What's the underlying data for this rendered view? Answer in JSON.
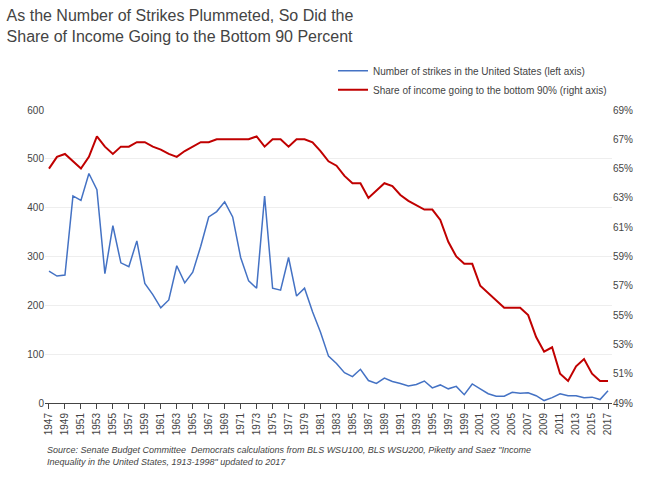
{
  "chart_data": {
    "type": "line",
    "title": "As the Number of Strikes Plummeted, So Did the\nShare of Income Going to the Bottom 90 Percent",
    "annotations": [
      "Source: Senate Budget Committee  Democrats calculations from BLS WSU100, BLS WSU200, Piketty and Saez \"Income\nInequality in the United States, 1913-1998\" updated to 2017"
    ],
    "x": [
      1947,
      1948,
      1949,
      1950,
      1951,
      1952,
      1953,
      1954,
      1955,
      1956,
      1957,
      1958,
      1959,
      1960,
      1961,
      1962,
      1963,
      1964,
      1965,
      1966,
      1967,
      1968,
      1969,
      1970,
      1971,
      1972,
      1973,
      1974,
      1975,
      1976,
      1977,
      1978,
      1979,
      1980,
      1981,
      1982,
      1983,
      1984,
      1985,
      1986,
      1987,
      1988,
      1989,
      1990,
      1991,
      1992,
      1993,
      1994,
      1995,
      1996,
      1997,
      1998,
      1999,
      2000,
      2001,
      2002,
      2003,
      2004,
      2005,
      2006,
      2007,
      2008,
      2009,
      2010,
      2011,
      2012,
      2013,
      2014,
      2015,
      2016,
      2017
    ],
    "series": [
      {
        "name": "Number of strikes in the United States (left axis)",
        "color": "#4472C4",
        "values": [
          270,
          260,
          262,
          424,
          415,
          470,
          437,
          265,
          363,
          287,
          279,
          332,
          245,
          222,
          195,
          211,
          281,
          246,
          268,
          321,
          381,
          392,
          412,
          381,
          298,
          250,
          235,
          424,
          235,
          231,
          298,
          219,
          235,
          187,
          145,
          96,
          81,
          62,
          54,
          69,
          46,
          40,
          51,
          44,
          40,
          35,
          38,
          45,
          31,
          37,
          29,
          34,
          17,
          39,
          29,
          19,
          14,
          14,
          22,
          20,
          21,
          15,
          5,
          11,
          19,
          15,
          15,
          11,
          12,
          7,
          25
        ]
      },
      {
        "name": "Share of income going to the bottom 90% (right axis)",
        "color": "#C00000",
        "axis": "y2",
        "values": [
          65.0,
          65.8,
          66.0,
          65.5,
          65.0,
          65.8,
          67.2,
          66.5,
          66.0,
          66.5,
          66.5,
          66.8,
          66.8,
          66.5,
          66.3,
          66.0,
          65.8,
          66.2,
          66.5,
          66.8,
          66.8,
          67.0,
          67.0,
          67.0,
          67.0,
          67.0,
          67.2,
          66.5,
          67.0,
          67.0,
          66.5,
          67.0,
          67.0,
          66.8,
          66.2,
          65.5,
          65.2,
          64.5,
          64.0,
          64.0,
          63.0,
          63.5,
          64.0,
          63.8,
          63.2,
          62.8,
          62.5,
          62.2,
          62.2,
          61.5,
          60.0,
          59.0,
          58.5,
          58.5,
          57.0,
          56.5,
          56.0,
          55.5,
          55.5,
          55.5,
          55.0,
          53.5,
          52.5,
          52.8,
          51.0,
          50.5,
          51.5,
          52.0,
          51.0,
          50.5,
          50.5
        ]
      }
    ],
    "xlim": [
      1946.5,
      2017.5
    ],
    "xticks": [
      1947,
      1949,
      1951,
      1953,
      1955,
      1957,
      1959,
      1961,
      1963,
      1965,
      1967,
      1969,
      1971,
      1973,
      1975,
      1977,
      1979,
      1981,
      1983,
      1985,
      1987,
      1989,
      1991,
      1993,
      1995,
      1997,
      1999,
      2001,
      2003,
      2005,
      2007,
      2009,
      2011,
      2013,
      2015,
      2017
    ],
    "ylim": [
      0,
      600
    ],
    "yticks": [
      0,
      100,
      200,
      300,
      400,
      500,
      600
    ],
    "y2lim": [
      49,
      69
    ],
    "y2ticks": [
      {
        "value": 49,
        "label": "49%"
      },
      {
        "value": 51,
        "label": "51%"
      },
      {
        "value": 53,
        "label": "53%"
      },
      {
        "value": 55,
        "label": "55%"
      },
      {
        "value": 57,
        "label": "57%"
      },
      {
        "value": 59,
        "label": "59%"
      },
      {
        "value": 61,
        "label": "61%"
      },
      {
        "value": 63,
        "label": "63%"
      },
      {
        "value": 65,
        "label": "65%"
      },
      {
        "value": 67,
        "label": "67%"
      },
      {
        "value": 69,
        "label": "69%"
      }
    ],
    "grid": true,
    "legend": "upper right"
  }
}
